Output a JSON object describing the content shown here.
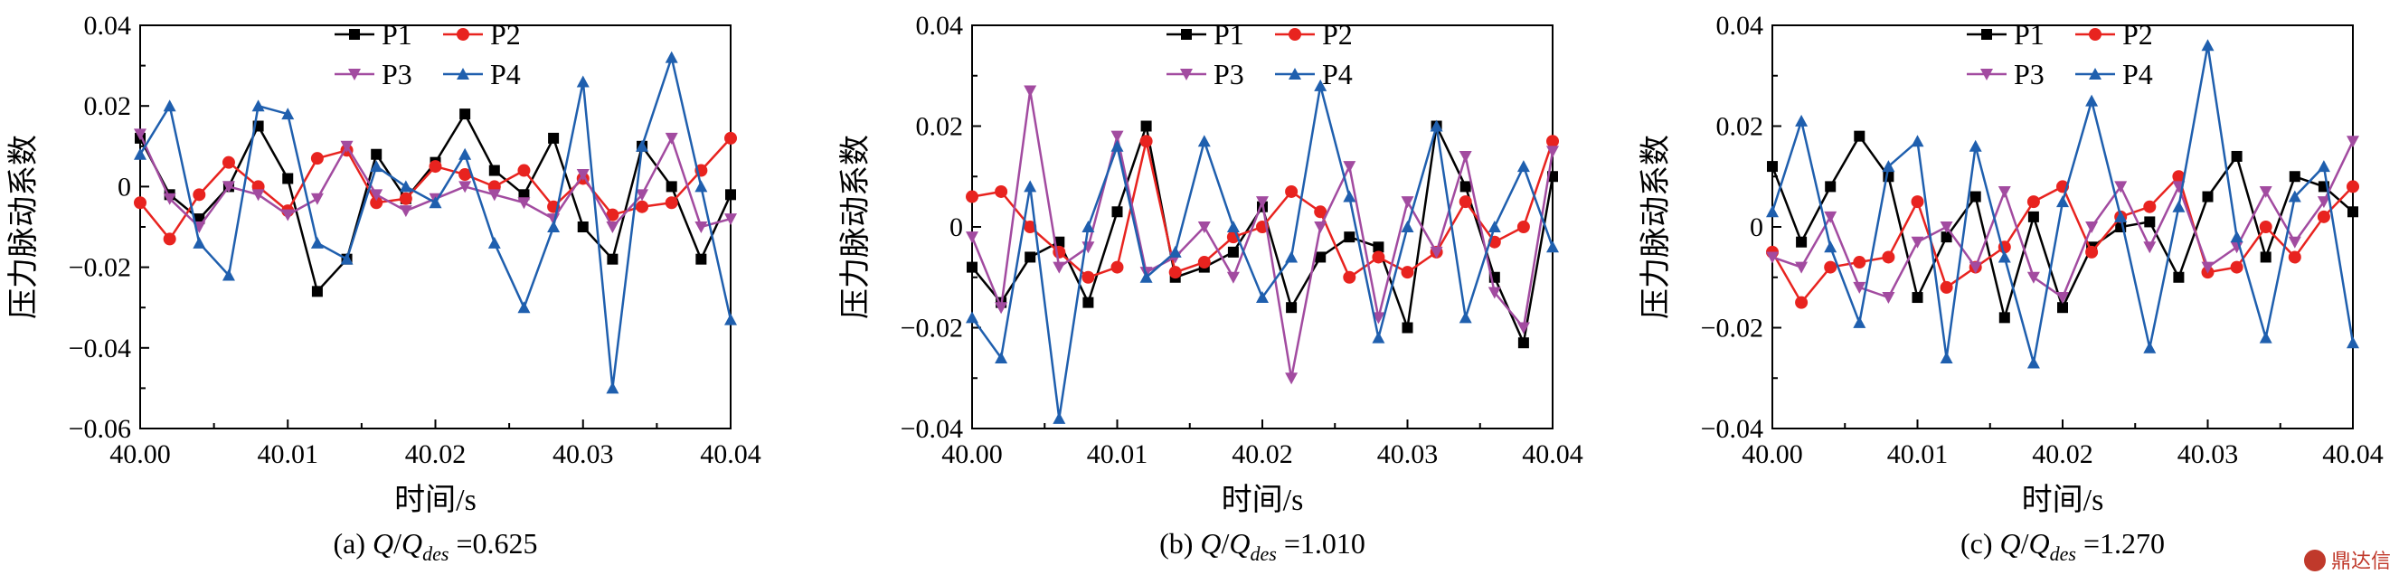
{
  "colors": {
    "P1": "#000000",
    "P2": "#e8231f",
    "P3": "#a24ba0",
    "P4": "#1f5fae"
  },
  "watermark": "鼎达信",
  "chart_data": [
    {
      "type": "line",
      "xlabel": "时间/s",
      "ylabel": "压力脉动系数",
      "caption": {
        "prefix": "(a) ",
        "q": "Q",
        "slash": "/",
        "qdes": "Q",
        "sub": "des",
        "value": " =0.625"
      },
      "xlim": [
        40.0,
        40.04
      ],
      "ylim": [
        -0.06,
        0.04
      ],
      "xticks": [
        "40.00",
        "40.01",
        "40.02",
        "40.03",
        "40.04"
      ],
      "yticks": [
        {
          "v": -0.06,
          "label": "−0.06"
        },
        {
          "v": -0.04,
          "label": "−0.04"
        },
        {
          "v": -0.02,
          "label": "−0.02"
        },
        {
          "v": 0,
          "label": "0"
        },
        {
          "v": 0.02,
          "label": "0.02"
        },
        {
          "v": 0.04,
          "label": "0.04"
        }
      ],
      "series": [
        {
          "name": "P1",
          "marker": "square",
          "x": [
            40.0,
            40.002,
            40.004,
            40.006,
            40.008,
            40.01,
            40.012,
            40.014,
            40.016,
            40.018,
            40.02,
            40.022,
            40.024,
            40.026,
            40.028,
            40.03,
            40.032,
            40.034,
            40.036,
            40.038,
            40.04
          ],
          "y": [
            0.012,
            -0.002,
            -0.008,
            0.0,
            0.015,
            0.002,
            -0.026,
            -0.018,
            0.008,
            -0.003,
            0.006,
            0.018,
            0.004,
            -0.002,
            0.012,
            -0.01,
            -0.018,
            0.01,
            0.0,
            -0.018,
            -0.002
          ]
        },
        {
          "name": "P2",
          "marker": "circle",
          "x": [
            40.0,
            40.002,
            40.004,
            40.006,
            40.008,
            40.01,
            40.012,
            40.014,
            40.016,
            40.018,
            40.02,
            40.022,
            40.024,
            40.026,
            40.028,
            40.03,
            40.032,
            40.034,
            40.036,
            40.038,
            40.04
          ],
          "y": [
            -0.004,
            -0.013,
            -0.002,
            0.006,
            0.0,
            -0.006,
            0.007,
            0.009,
            -0.004,
            -0.003,
            0.005,
            0.003,
            0.0,
            0.004,
            -0.005,
            0.002,
            -0.007,
            -0.005,
            -0.004,
            0.004,
            0.012
          ]
        },
        {
          "name": "P3",
          "marker": "triangle-down",
          "x": [
            40.0,
            40.002,
            40.004,
            40.006,
            40.008,
            40.01,
            40.012,
            40.014,
            40.016,
            40.018,
            40.02,
            40.022,
            40.024,
            40.026,
            40.028,
            40.03,
            40.032,
            40.034,
            40.036,
            40.038,
            40.04
          ],
          "y": [
            0.013,
            -0.003,
            -0.01,
            0.0,
            -0.002,
            -0.007,
            -0.003,
            0.01,
            -0.002,
            -0.006,
            -0.003,
            0.0,
            -0.002,
            -0.004,
            -0.008,
            0.003,
            -0.01,
            -0.002,
            0.012,
            -0.01,
            -0.008
          ]
        },
        {
          "name": "P4",
          "marker": "triangle-up",
          "x": [
            40.0,
            40.002,
            40.004,
            40.006,
            40.008,
            40.01,
            40.012,
            40.014,
            40.016,
            40.018,
            40.02,
            40.022,
            40.024,
            40.026,
            40.028,
            40.03,
            40.032,
            40.034,
            40.036,
            40.038,
            40.04
          ],
          "y": [
            0.008,
            0.02,
            -0.014,
            -0.022,
            0.02,
            0.018,
            -0.014,
            -0.018,
            0.005,
            0.0,
            -0.004,
            0.008,
            -0.014,
            -0.03,
            -0.01,
            0.026,
            -0.05,
            0.01,
            0.032,
            0.0,
            -0.033
          ]
        }
      ]
    },
    {
      "type": "line",
      "xlabel": "时间/s",
      "ylabel": "压力脉动系数",
      "caption": {
        "prefix": "(b) ",
        "q": "Q",
        "slash": "/",
        "qdes": "Q",
        "sub": "des",
        "value": " =1.010"
      },
      "xlim": [
        40.0,
        40.04
      ],
      "ylim": [
        -0.04,
        0.04
      ],
      "xticks": [
        "40.00",
        "40.01",
        "40.02",
        "40.03",
        "40.04"
      ],
      "yticks": [
        {
          "v": -0.04,
          "label": "−0.04"
        },
        {
          "v": -0.02,
          "label": "−0.02"
        },
        {
          "v": 0,
          "label": "0"
        },
        {
          "v": 0.02,
          "label": "0.02"
        },
        {
          "v": 0.04,
          "label": "0.04"
        }
      ],
      "series": [
        {
          "name": "P1",
          "marker": "square",
          "x": [
            40.0,
            40.002,
            40.004,
            40.006,
            40.008,
            40.01,
            40.012,
            40.014,
            40.016,
            40.018,
            40.02,
            40.022,
            40.024,
            40.026,
            40.028,
            40.03,
            40.032,
            40.034,
            40.036,
            40.038,
            40.04
          ],
          "y": [
            -0.008,
            -0.015,
            -0.006,
            -0.003,
            -0.015,
            0.003,
            0.02,
            -0.01,
            -0.008,
            -0.005,
            0.004,
            -0.016,
            -0.006,
            -0.002,
            -0.004,
            -0.02,
            0.02,
            0.008,
            -0.01,
            -0.023,
            0.01
          ]
        },
        {
          "name": "P2",
          "marker": "circle",
          "x": [
            40.0,
            40.002,
            40.004,
            40.006,
            40.008,
            40.01,
            40.012,
            40.014,
            40.016,
            40.018,
            40.02,
            40.022,
            40.024,
            40.026,
            40.028,
            40.03,
            40.032,
            40.034,
            40.036,
            40.038,
            40.04
          ],
          "y": [
            0.006,
            0.007,
            0.0,
            -0.005,
            -0.01,
            -0.008,
            0.017,
            -0.009,
            -0.007,
            -0.002,
            0.0,
            0.007,
            0.003,
            -0.01,
            -0.006,
            -0.009,
            -0.005,
            0.005,
            -0.003,
            0.0,
            0.017
          ]
        },
        {
          "name": "P3",
          "marker": "triangle-down",
          "x": [
            40.0,
            40.002,
            40.004,
            40.006,
            40.008,
            40.01,
            40.012,
            40.014,
            40.016,
            40.018,
            40.02,
            40.022,
            40.024,
            40.026,
            40.028,
            40.03,
            40.032,
            40.034,
            40.036,
            40.038,
            40.04
          ],
          "y": [
            -0.002,
            -0.016,
            0.027,
            -0.008,
            -0.004,
            0.018,
            -0.009,
            -0.006,
            0.0,
            -0.01,
            0.005,
            -0.03,
            0.0,
            0.012,
            -0.018,
            0.005,
            -0.005,
            0.014,
            -0.013,
            -0.02,
            0.015
          ]
        },
        {
          "name": "P4",
          "marker": "triangle-up",
          "x": [
            40.0,
            40.002,
            40.004,
            40.006,
            40.008,
            40.01,
            40.012,
            40.014,
            40.016,
            40.018,
            40.02,
            40.022,
            40.024,
            40.026,
            40.028,
            40.03,
            40.032,
            40.034,
            40.036,
            40.038,
            40.04
          ],
          "y": [
            -0.018,
            -0.026,
            0.008,
            -0.038,
            0.0,
            0.016,
            -0.01,
            -0.005,
            0.017,
            0.0,
            -0.014,
            -0.006,
            0.028,
            0.006,
            -0.022,
            0.0,
            0.02,
            -0.018,
            0.0,
            0.012,
            -0.004
          ]
        }
      ]
    },
    {
      "type": "line",
      "xlabel": "时间/s",
      "ylabel": "压力脉动系数",
      "caption": {
        "prefix": "(c) ",
        "q": "Q",
        "slash": "/",
        "qdes": "Q",
        "sub": "des",
        "value": " =1.270"
      },
      "xlim": [
        40.0,
        40.04
      ],
      "ylim": [
        -0.04,
        0.04
      ],
      "xticks": [
        "40.00",
        "40.01",
        "40.02",
        "40.03",
        "40.04"
      ],
      "yticks": [
        {
          "v": -0.04,
          "label": "−0.04"
        },
        {
          "v": -0.02,
          "label": "−0.02"
        },
        {
          "v": 0,
          "label": "0"
        },
        {
          "v": 0.02,
          "label": "0.02"
        },
        {
          "v": 0.04,
          "label": "0.04"
        }
      ],
      "series": [
        {
          "name": "P1",
          "marker": "square",
          "x": [
            40.0,
            40.002,
            40.004,
            40.006,
            40.008,
            40.01,
            40.012,
            40.014,
            40.016,
            40.018,
            40.02,
            40.022,
            40.024,
            40.026,
            40.028,
            40.03,
            40.032,
            40.034,
            40.036,
            40.038,
            40.04
          ],
          "y": [
            0.012,
            -0.003,
            0.008,
            0.018,
            0.01,
            -0.014,
            -0.002,
            0.006,
            -0.018,
            0.002,
            -0.016,
            -0.004,
            0.0,
            0.001,
            -0.01,
            0.006,
            0.014,
            -0.006,
            0.01,
            0.008,
            0.003
          ]
        },
        {
          "name": "P2",
          "marker": "circle",
          "x": [
            40.0,
            40.002,
            40.004,
            40.006,
            40.008,
            40.01,
            40.012,
            40.014,
            40.016,
            40.018,
            40.02,
            40.022,
            40.024,
            40.026,
            40.028,
            40.03,
            40.032,
            40.034,
            40.036,
            40.038,
            40.04
          ],
          "y": [
            -0.005,
            -0.015,
            -0.008,
            -0.007,
            -0.006,
            0.005,
            -0.012,
            -0.008,
            -0.004,
            0.005,
            0.008,
            -0.005,
            0.002,
            0.004,
            0.01,
            -0.009,
            -0.008,
            0.0,
            -0.006,
            0.002,
            0.008
          ]
        },
        {
          "name": "P3",
          "marker": "triangle-down",
          "x": [
            40.0,
            40.002,
            40.004,
            40.006,
            40.008,
            40.01,
            40.012,
            40.014,
            40.016,
            40.018,
            40.02,
            40.022,
            40.024,
            40.026,
            40.028,
            40.03,
            40.032,
            40.034,
            40.036,
            40.038,
            40.04
          ],
          "y": [
            -0.006,
            -0.008,
            0.002,
            -0.012,
            -0.014,
            -0.003,
            0.0,
            -0.008,
            0.007,
            -0.01,
            -0.014,
            0.0,
            0.008,
            -0.004,
            0.008,
            -0.008,
            -0.004,
            0.007,
            -0.003,
            0.005,
            0.017
          ]
        },
        {
          "name": "P4",
          "marker": "triangle-up",
          "x": [
            40.0,
            40.002,
            40.004,
            40.006,
            40.008,
            40.01,
            40.012,
            40.014,
            40.016,
            40.018,
            40.02,
            40.022,
            40.024,
            40.026,
            40.028,
            40.03,
            40.032,
            40.034,
            40.036,
            40.038,
            40.04
          ],
          "y": [
            0.003,
            0.021,
            -0.004,
            -0.019,
            0.012,
            0.017,
            -0.026,
            0.016,
            -0.006,
            -0.027,
            0.005,
            0.025,
            0.002,
            -0.024,
            0.004,
            0.036,
            -0.002,
            -0.022,
            0.006,
            0.012,
            -0.023
          ]
        }
      ]
    }
  ]
}
